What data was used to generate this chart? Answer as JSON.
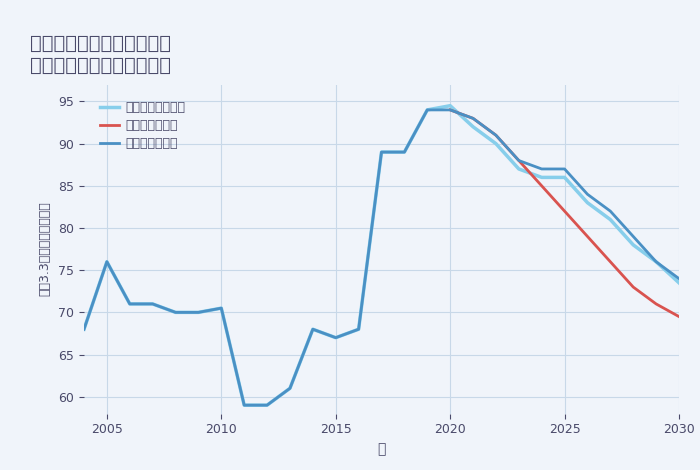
{
  "title": "奈良県生駒郡斑鳩町阿波の\n中古マンションの価格推移",
  "xlabel": "年",
  "ylabel": "平（3.3㎡）単価（万円）",
  "background_color": "#f0f4fa",
  "plot_bg_color": "#f0f4fa",
  "good_scenario": {
    "label": "グッドシナリオ",
    "color": "#4a90c4",
    "years": [
      2004,
      2005,
      2006,
      2007,
      2008,
      2009,
      2010,
      2011,
      2012,
      2013,
      2014,
      2015,
      2016,
      2017,
      2018,
      2019,
      2020,
      2021,
      2022,
      2023,
      2024,
      2025,
      2026,
      2027,
      2028,
      2029,
      2030
    ],
    "values": [
      68,
      76,
      71,
      71,
      70,
      70,
      70.5,
      59,
      59,
      61,
      68,
      67,
      68,
      89,
      89,
      94,
      94,
      93,
      91,
      88,
      87,
      87,
      84,
      82,
      79,
      76,
      74
    ]
  },
  "bad_scenario": {
    "label": "バッドシナリオ",
    "color": "#d9534f",
    "years": [
      2020,
      2021,
      2022,
      2023,
      2024,
      2025,
      2026,
      2027,
      2028,
      2029,
      2030
    ],
    "values": [
      94,
      93,
      91,
      88,
      85,
      82,
      79,
      76,
      73,
      71,
      69.5
    ]
  },
  "normal_scenario": {
    "label": "ノーマルシナリオ",
    "color": "#87ceeb",
    "years": [
      2004,
      2005,
      2006,
      2007,
      2008,
      2009,
      2010,
      2011,
      2012,
      2013,
      2014,
      2015,
      2016,
      2017,
      2018,
      2019,
      2020,
      2021,
      2022,
      2023,
      2024,
      2025,
      2026,
      2027,
      2028,
      2029,
      2030
    ],
    "values": [
      68,
      76,
      71,
      71,
      70,
      70,
      70.5,
      59,
      59,
      61,
      68,
      67,
      68,
      89,
      89,
      94,
      94.5,
      92,
      90,
      87,
      86,
      86,
      83,
      81,
      78,
      76,
      73.5
    ]
  },
  "xlim": [
    2004,
    2030
  ],
  "ylim": [
    58,
    97
  ],
  "yticks": [
    60,
    65,
    70,
    75,
    80,
    85,
    90,
    95
  ],
  "xticks": [
    2005,
    2010,
    2015,
    2020,
    2025,
    2030
  ],
  "grid_color": "#c8d8e8",
  "title_color": "#4a4a6a",
  "tick_color": "#4a4a6a",
  "label_color": "#4a4a6a"
}
